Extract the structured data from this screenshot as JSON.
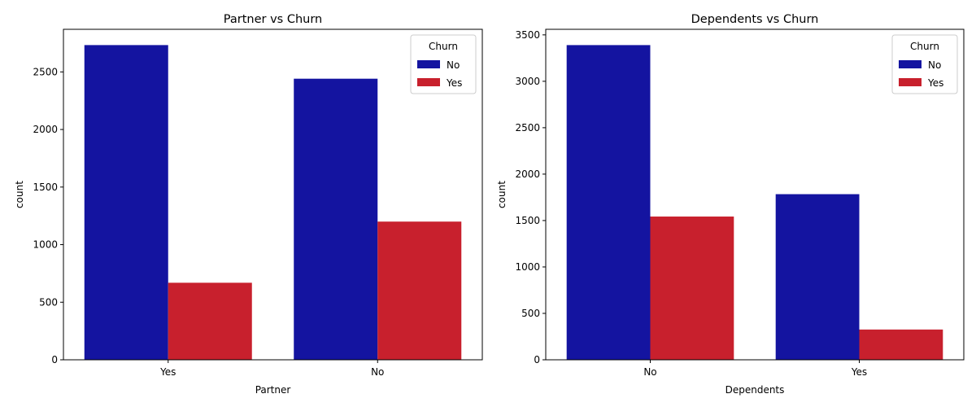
{
  "colors": {
    "No": "#1414a0",
    "Yes": "#c8202d"
  },
  "chart_data": [
    {
      "type": "bar",
      "title": "Partner vs Churn",
      "xlabel": "Partner",
      "ylabel": "count",
      "categories": [
        "Yes",
        "No"
      ],
      "series": [
        {
          "name": "No",
          "values": [
            2733,
            2441
          ]
        },
        {
          "name": "Yes",
          "values": [
            669,
            1200
          ]
        }
      ],
      "ylim": [
        0,
        2870
      ],
      "yticks": [
        0,
        500,
        1000,
        1500,
        2000,
        2500
      ],
      "legend": {
        "title": "Churn",
        "placement": "top-right"
      },
      "grid": false
    },
    {
      "type": "bar",
      "title": "Dependents vs Churn",
      "xlabel": "Dependents",
      "ylabel": "count",
      "categories": [
        "No",
        "Yes"
      ],
      "series": [
        {
          "name": "No",
          "values": [
            3390,
            1784
          ]
        },
        {
          "name": "Yes",
          "values": [
            1543,
            326
          ]
        }
      ],
      "ylim": [
        0,
        3560
      ],
      "yticks": [
        0,
        500,
        1000,
        1500,
        2000,
        2500,
        3000,
        3500
      ],
      "legend": {
        "title": "Churn",
        "placement": "top-right"
      },
      "grid": false
    }
  ]
}
